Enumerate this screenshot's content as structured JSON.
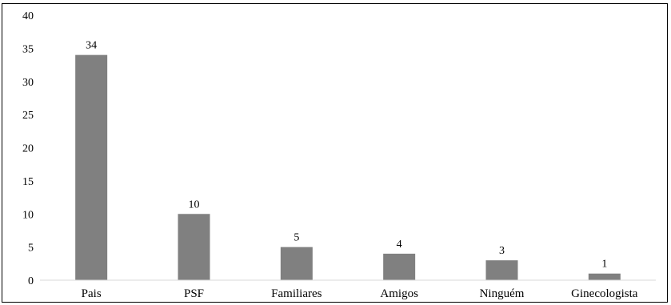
{
  "chart_data": {
    "type": "bar",
    "title": "",
    "xlabel": "",
    "ylabel": "",
    "categories": [
      "Pais",
      "PSF",
      "Familiares",
      "Amigos",
      "Ninguém",
      "Ginecologista"
    ],
    "values": [
      34,
      10,
      5,
      4,
      3,
      1
    ],
    "data_labels": [
      "34",
      "10",
      "5",
      "4",
      "3",
      "1"
    ],
    "ylim": [
      0,
      40
    ],
    "yticks": [
      "0",
      "5",
      "10",
      "15",
      "20",
      "25",
      "30",
      "35",
      "40"
    ],
    "grid": false,
    "legend": "none",
    "bar_color": "#808080",
    "axis_color": "#d9d9d9"
  }
}
